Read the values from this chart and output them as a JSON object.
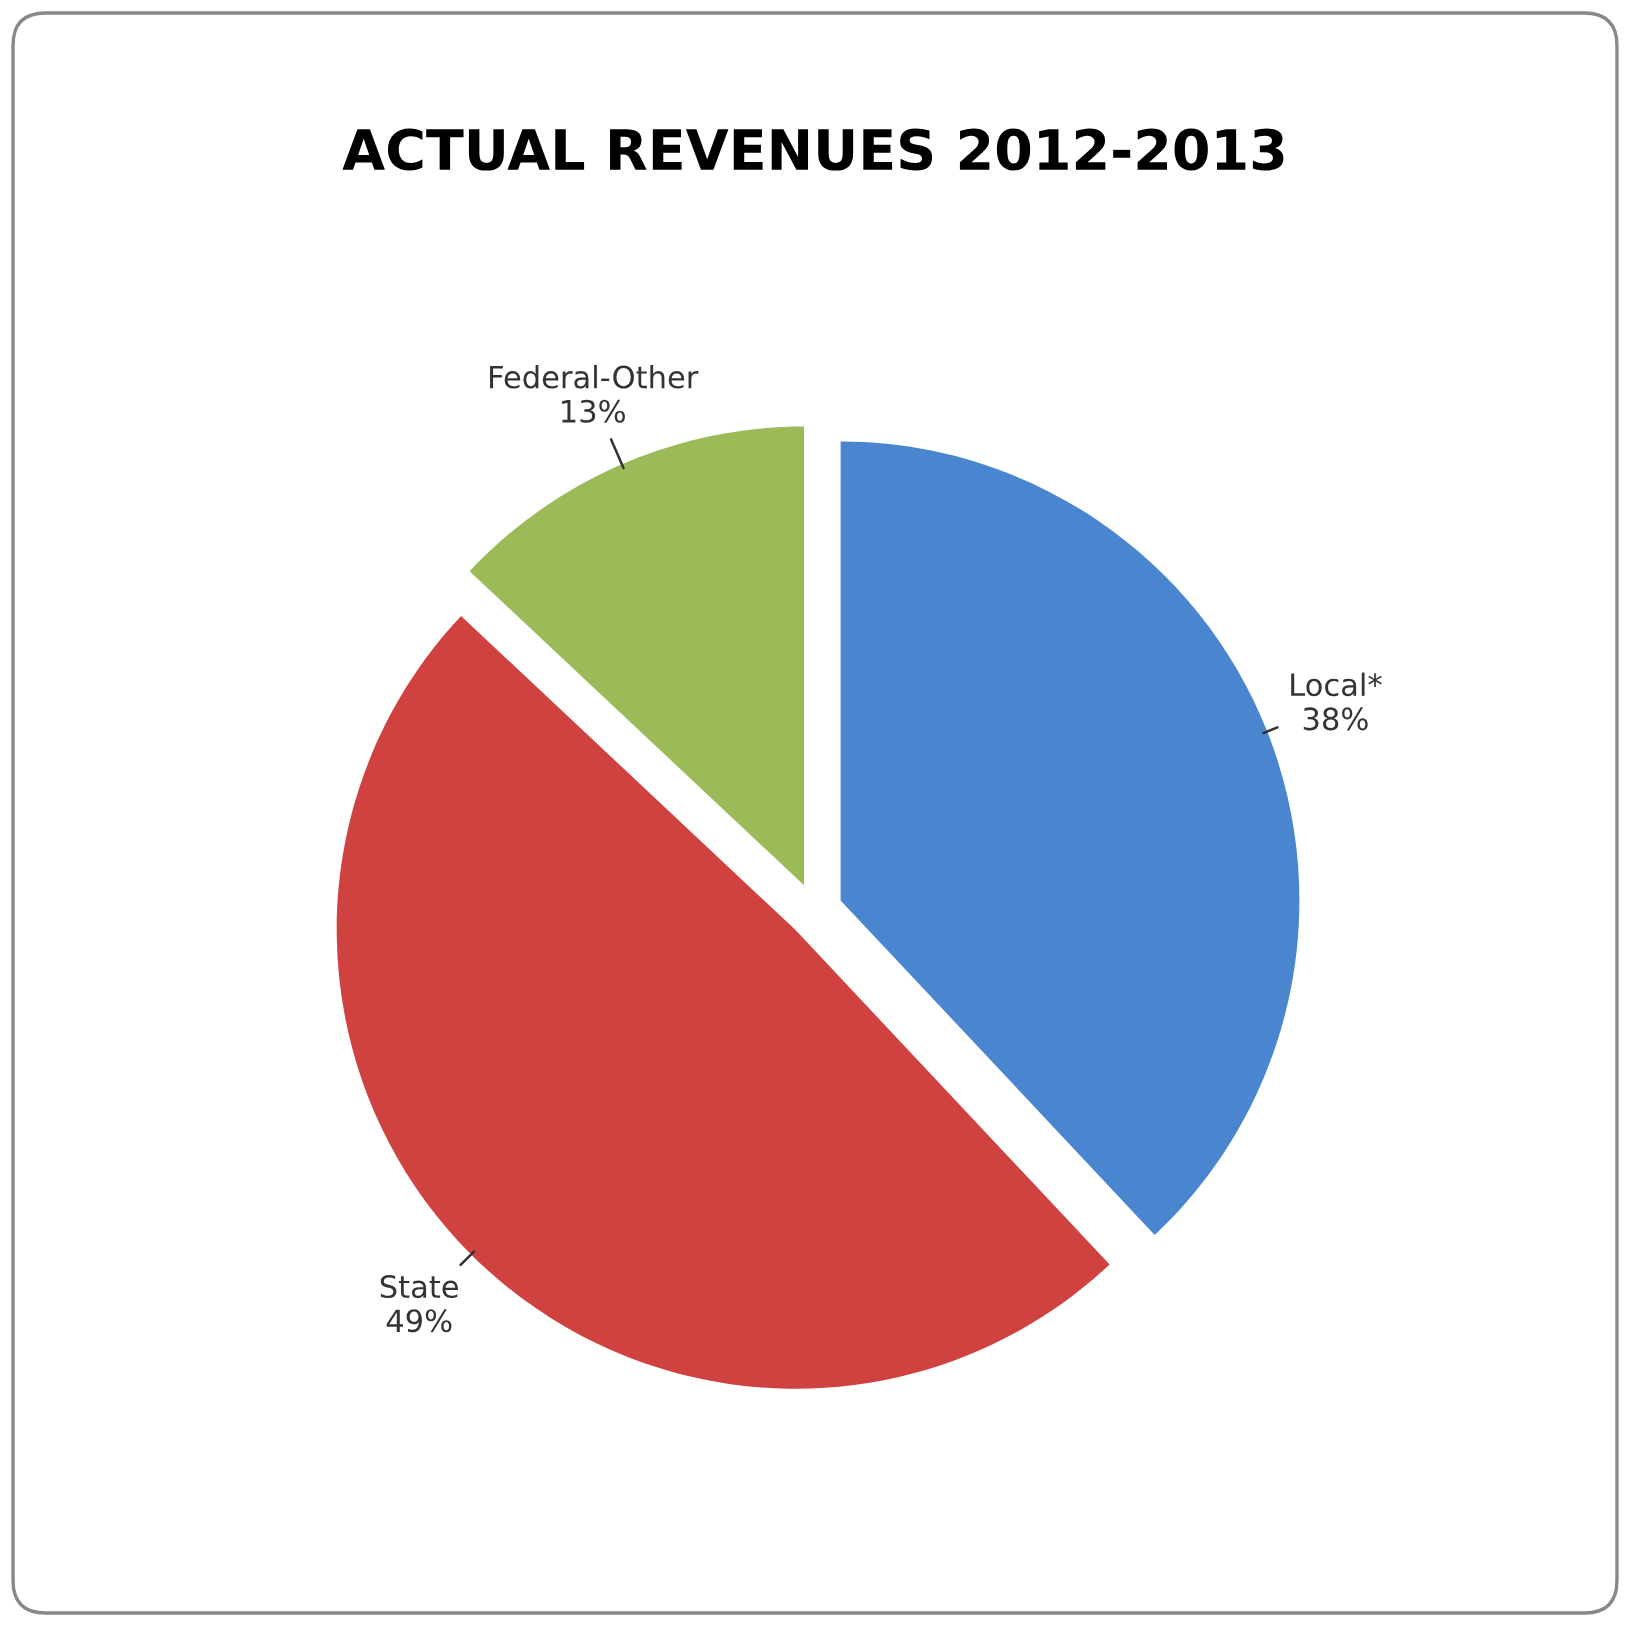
{
  "chart_data": {
    "type": "pie",
    "title": "ACTUAL REVENUES 2012-2013",
    "categories": [
      "Local*",
      "State",
      "Federal-Other"
    ],
    "values": [
      38,
      49,
      13
    ],
    "value_labels": [
      "38%",
      "49%",
      "13%"
    ],
    "colors": [
      "#4a86d0",
      "#cf4240",
      "#9bbb59"
    ],
    "legend": false
  }
}
